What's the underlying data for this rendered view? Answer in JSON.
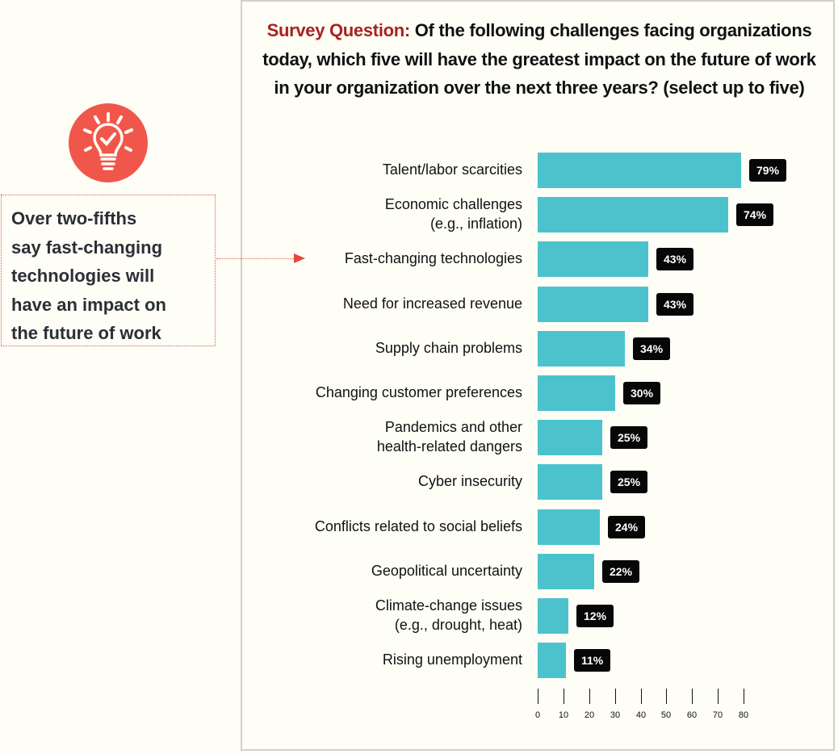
{
  "callout": {
    "icon": "lightbulb-check-icon",
    "text_lines": [
      "Over two-fifths",
      "say fast-changing",
      "technologies will",
      "have an impact on",
      "the future of work"
    ],
    "accent_color": "#f0574a"
  },
  "chart_data": {
    "type": "bar",
    "orientation": "horizontal",
    "title_lead": "Survey Question:",
    "title": "Of the following challenges facing organizations today, which five will have the greatest impact on the future of work in your organization over the next three years? (select up to five)",
    "categories": [
      [
        "Talent/labor scarcities"
      ],
      [
        "Economic challenges",
        "(e.g., inflation)"
      ],
      [
        "Fast-changing technologies"
      ],
      [
        "Need for increased revenue"
      ],
      [
        "Supply chain problems"
      ],
      [
        "Changing customer preferences"
      ],
      [
        "Pandemics and other",
        "health-related dangers"
      ],
      [
        "Cyber insecurity"
      ],
      [
        "Conflicts related to social beliefs"
      ],
      [
        "Geopolitical uncertainty"
      ],
      [
        "Climate-change issues",
        "(e.g., drought, heat)"
      ],
      [
        "Rising unemployment"
      ]
    ],
    "values": [
      79,
      74,
      43,
      43,
      34,
      30,
      25,
      25,
      24,
      22,
      12,
      11
    ],
    "value_labels": [
      "79%",
      "74%",
      "43%",
      "43%",
      "34%",
      "30%",
      "25%",
      "25%",
      "24%",
      "22%",
      "12%",
      "11%"
    ],
    "xlim": [
      0,
      80
    ],
    "xticks": [
      0,
      10,
      20,
      30,
      40,
      50,
      60,
      70,
      80
    ],
    "xtick_labels": [
      "0",
      "10",
      "20",
      "30",
      "40",
      "50",
      "60",
      "70",
      "80"
    ],
    "highlighted_category_index": 2,
    "bar_color": "#4cc3cc",
    "label_bg_color": "#070707",
    "title_lead_color": "#a8221e",
    "grid": false,
    "legend": "none"
  }
}
